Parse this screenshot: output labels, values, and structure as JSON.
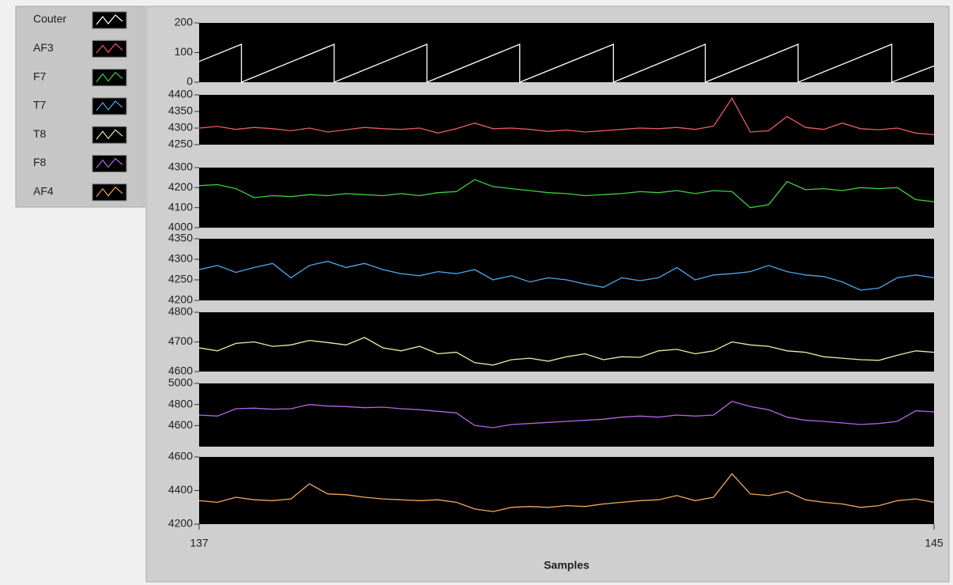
{
  "chart_data": [
    {
      "type": "line",
      "x": [
        137,
        137.46,
        137.46,
        138.47,
        138.47,
        139.48,
        139.48,
        140.49,
        140.49,
        141.51,
        141.51,
        142.51,
        142.51,
        143.52,
        143.52,
        144.54,
        144.54,
        145
      ],
      "xlim": [
        137,
        145
      ],
      "ylim": [
        0,
        200
      ],
      "yticks": [
        0,
        100,
        200
      ],
      "series": [
        {
          "name": "Couter",
          "color": "#ffffff",
          "values": [
            70,
            128,
            0,
            128,
            0,
            128,
            0,
            128,
            0,
            128,
            0,
            128,
            0,
            128,
            0,
            128,
            0,
            55
          ]
        }
      ]
    },
    {
      "type": "line",
      "x": [
        137,
        137.2,
        137.4,
        137.6,
        137.8,
        138,
        138.2,
        138.4,
        138.6,
        138.8,
        139,
        139.2,
        139.4,
        139.6,
        139.8,
        140,
        140.2,
        140.4,
        140.6,
        140.8,
        141,
        141.2,
        141.4,
        141.6,
        141.8,
        142,
        142.2,
        142.4,
        142.6,
        142.8,
        143,
        143.2,
        143.4,
        143.6,
        143.8,
        144,
        144.2,
        144.4,
        144.6,
        144.8,
        145
      ],
      "xlim": [
        137,
        145
      ],
      "ylim": [
        4250,
        4400
      ],
      "yticks": [
        4250,
        4300,
        4350,
        4400
      ],
      "series": [
        {
          "name": "AF3",
          "color": "#ec5b5b",
          "values": [
            4300,
            4305,
            4296,
            4302,
            4298,
            4292,
            4300,
            4288,
            4295,
            4302,
            4298,
            4296,
            4300,
            4285,
            4298,
            4315,
            4298,
            4300,
            4296,
            4290,
            4294,
            4288,
            4292,
            4296,
            4300,
            4298,
            4302,
            4296,
            4306,
            4390,
            4288,
            4292,
            4335,
            4302,
            4296,
            4315,
            4298,
            4295,
            4300,
            4285,
            4280
          ]
        }
      ]
    },
    {
      "type": "line",
      "x": [
        137,
        137.2,
        137.4,
        137.6,
        137.8,
        138,
        138.2,
        138.4,
        138.6,
        138.8,
        139,
        139.2,
        139.4,
        139.6,
        139.8,
        140,
        140.2,
        140.4,
        140.6,
        140.8,
        141,
        141.2,
        141.4,
        141.6,
        141.8,
        142,
        142.2,
        142.4,
        142.6,
        142.8,
        143,
        143.2,
        143.4,
        143.6,
        143.8,
        144,
        144.2,
        144.4,
        144.6,
        144.8,
        145
      ],
      "xlim": [
        137,
        145
      ],
      "ylim": [
        4000,
        4300
      ],
      "yticks": [
        4000,
        4100,
        4200,
        4300
      ],
      "series": [
        {
          "name": "F7",
          "color": "#3ed03e",
          "values": [
            4210,
            4215,
            4195,
            4150,
            4160,
            4155,
            4165,
            4160,
            4170,
            4165,
            4160,
            4170,
            4160,
            4175,
            4180,
            4240,
            4205,
            4195,
            4185,
            4175,
            4170,
            4160,
            4165,
            4170,
            4180,
            4175,
            4185,
            4170,
            4185,
            4180,
            4100,
            4115,
            4230,
            4190,
            4195,
            4185,
            4200,
            4195,
            4200,
            4140,
            4130
          ]
        }
      ]
    },
    {
      "type": "line",
      "x": [
        137,
        137.2,
        137.4,
        137.6,
        137.8,
        138,
        138.2,
        138.4,
        138.6,
        138.8,
        139,
        139.2,
        139.4,
        139.6,
        139.8,
        140,
        140.2,
        140.4,
        140.6,
        140.8,
        141,
        141.2,
        141.4,
        141.6,
        141.8,
        142,
        142.2,
        142.4,
        142.6,
        142.8,
        143,
        143.2,
        143.4,
        143.6,
        143.8,
        144,
        144.2,
        144.4,
        144.6,
        144.8,
        145
      ],
      "xlim": [
        137,
        145
      ],
      "ylim": [
        4200,
        4350
      ],
      "yticks": [
        4200,
        4250,
        4300,
        4350
      ],
      "series": [
        {
          "name": "T7",
          "color": "#4ea6ea",
          "values": [
            4275,
            4285,
            4268,
            4280,
            4290,
            4255,
            4285,
            4295,
            4280,
            4290,
            4275,
            4265,
            4260,
            4270,
            4265,
            4275,
            4250,
            4260,
            4245,
            4255,
            4250,
            4240,
            4232,
            4255,
            4248,
            4255,
            4280,
            4250,
            4262,
            4265,
            4270,
            4285,
            4270,
            4262,
            4258,
            4245,
            4225,
            4230,
            4255,
            4262,
            4255
          ]
        }
      ]
    },
    {
      "type": "line",
      "x": [
        137,
        137.2,
        137.4,
        137.6,
        137.8,
        138,
        138.2,
        138.4,
        138.6,
        138.8,
        139,
        139.2,
        139.4,
        139.6,
        139.8,
        140,
        140.2,
        140.4,
        140.6,
        140.8,
        141,
        141.2,
        141.4,
        141.6,
        141.8,
        142,
        142.2,
        142.4,
        142.6,
        142.8,
        143,
        143.2,
        143.4,
        143.6,
        143.8,
        144,
        144.2,
        144.4,
        144.6,
        144.8,
        145
      ],
      "xlim": [
        137,
        145
      ],
      "ylim": [
        4600,
        4800
      ],
      "yticks": [
        4600,
        4700,
        4800
      ],
      "series": [
        {
          "name": "T8",
          "color": "#dcf5a4",
          "values": [
            4680,
            4670,
            4695,
            4700,
            4685,
            4690,
            4705,
            4698,
            4690,
            4715,
            4680,
            4670,
            4685,
            4660,
            4665,
            4630,
            4622,
            4640,
            4645,
            4635,
            4650,
            4660,
            4640,
            4650,
            4648,
            4670,
            4675,
            4660,
            4670,
            4700,
            4690,
            4685,
            4670,
            4665,
            4650,
            4645,
            4640,
            4638,
            4655,
            4670,
            4665
          ]
        }
      ]
    },
    {
      "type": "line",
      "x": [
        137,
        137.2,
        137.4,
        137.6,
        137.8,
        138,
        138.2,
        138.4,
        138.6,
        138.8,
        139,
        139.2,
        139.4,
        139.6,
        139.8,
        140,
        140.2,
        140.4,
        140.6,
        140.8,
        141,
        141.2,
        141.4,
        141.6,
        141.8,
        142,
        142.2,
        142.4,
        142.6,
        142.8,
        143,
        143.2,
        143.4,
        143.6,
        143.8,
        144,
        144.2,
        144.4,
        144.6,
        144.8,
        145
      ],
      "xlim": [
        137,
        145
      ],
      "ylim": [
        4400,
        5000
      ],
      "yticks": [
        4600,
        4800,
        5000
      ],
      "series": [
        {
          "name": "F8",
          "color": "#b464e6",
          "values": [
            4700,
            4690,
            4760,
            4765,
            4755,
            4760,
            4800,
            4785,
            4780,
            4770,
            4775,
            4760,
            4750,
            4735,
            4720,
            4600,
            4580,
            4610,
            4620,
            4630,
            4640,
            4650,
            4660,
            4680,
            4690,
            4680,
            4700,
            4690,
            4700,
            4830,
            4780,
            4750,
            4680,
            4650,
            4640,
            4625,
            4610,
            4620,
            4640,
            4740,
            4730
          ]
        }
      ]
    },
    {
      "type": "line",
      "x": [
        137,
        137.2,
        137.4,
        137.6,
        137.8,
        138,
        138.2,
        138.4,
        138.6,
        138.8,
        139,
        139.2,
        139.4,
        139.6,
        139.8,
        140,
        140.2,
        140.4,
        140.6,
        140.8,
        141,
        141.2,
        141.4,
        141.6,
        141.8,
        142,
        142.2,
        142.4,
        142.6,
        142.8,
        143,
        143.2,
        143.4,
        143.6,
        143.8,
        144,
        144.2,
        144.4,
        144.6,
        144.8,
        145
      ],
      "xlim": [
        137,
        145
      ],
      "ylim": [
        4200,
        4600
      ],
      "yticks": [
        4200,
        4400,
        4600
      ],
      "xticks": [
        137,
        145
      ],
      "xlabel": "Samples",
      "series": [
        {
          "name": "AF4",
          "color": "#f4a65a",
          "values": [
            4340,
            4330,
            4360,
            4345,
            4340,
            4350,
            4440,
            4380,
            4375,
            4360,
            4350,
            4345,
            4340,
            4345,
            4330,
            4290,
            4275,
            4300,
            4305,
            4300,
            4310,
            4305,
            4320,
            4330,
            4340,
            4345,
            4370,
            4340,
            4360,
            4500,
            4380,
            4370,
            4395,
            4345,
            4330,
            4320,
            4300,
            4310,
            4340,
            4350,
            4330
          ]
        }
      ]
    }
  ]
}
